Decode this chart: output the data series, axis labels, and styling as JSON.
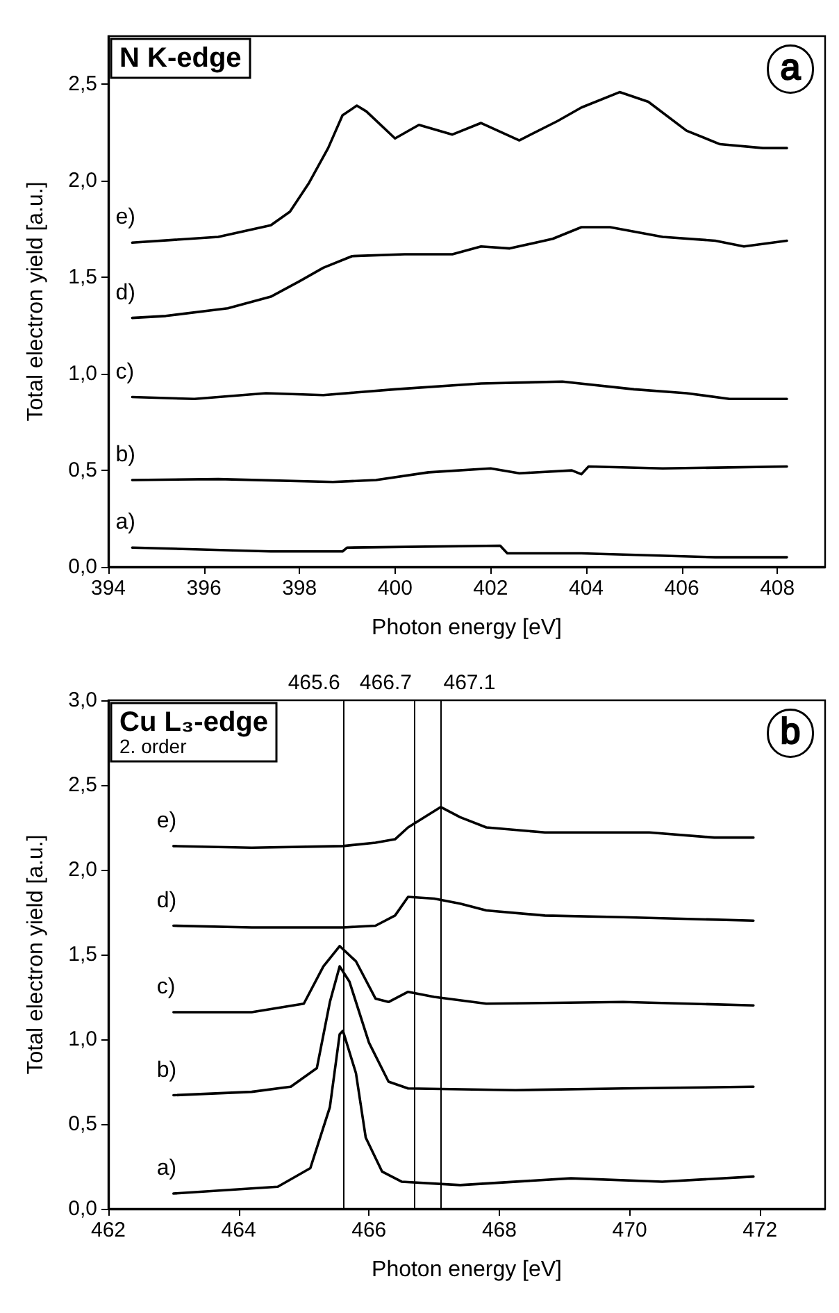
{
  "chart_data": [
    {
      "type": "line",
      "title": "N K-edge",
      "xlabel": "Photon energy [eV]",
      "ylabel": "Total electron yield [a.u.]",
      "annotations": [
        "a"
      ],
      "xlim": [
        394,
        409
      ],
      "xticks": [
        394,
        396,
        398,
        400,
        402,
        404,
        406,
        408
      ],
      "ylim": [
        0,
        2.75
      ],
      "yticks": [
        {
          "value": 0,
          "label": "0,0"
        },
        {
          "value": 0.5,
          "label": "0,5"
        },
        {
          "value": 1,
          "label": "1,0"
        },
        {
          "value": 1.5,
          "label": "1,5"
        },
        {
          "value": 2,
          "label": "2,0"
        },
        {
          "value": 2.5,
          "label": "2,5"
        }
      ],
      "marker": "none",
      "line_style": "solid",
      "series": [
        {
          "name": "e)",
          "color": "#000000",
          "x": [
            394.5,
            396.3,
            397.4,
            397.8,
            398.2,
            398.6,
            398.9,
            399.2,
            399.4,
            400.0,
            400.5,
            401.2,
            401.8,
            402.6,
            403.4,
            403.9,
            404.7,
            405.3,
            406.1,
            406.8,
            407.7,
            408.2
          ],
          "values": [
            1.68,
            1.71,
            1.77,
            1.84,
            1.99,
            2.17,
            2.34,
            2.39,
            2.36,
            2.22,
            2.29,
            2.24,
            2.3,
            2.21,
            2.31,
            2.38,
            2.46,
            2.41,
            2.26,
            2.19,
            2.17,
            2.17
          ]
        },
        {
          "name": "d)",
          "color": "#000000",
          "x": [
            394.5,
            395.2,
            396.5,
            397.4,
            398.0,
            398.5,
            399.1,
            400.2,
            401.2,
            401.8,
            402.4,
            403.3,
            403.9,
            404.5,
            405.6,
            406.7,
            407.3,
            408.2
          ],
          "values": [
            1.29,
            1.3,
            1.34,
            1.4,
            1.48,
            1.55,
            1.61,
            1.62,
            1.62,
            1.66,
            1.65,
            1.7,
            1.76,
            1.76,
            1.71,
            1.69,
            1.66,
            1.69
          ]
        },
        {
          "name": "c)",
          "color": "#000000",
          "x": [
            394.5,
            395.8,
            397.3,
            398.5,
            400.0,
            401.8,
            403.5,
            405.0,
            406.1,
            407.0,
            408.2
          ],
          "values": [
            0.88,
            0.87,
            0.9,
            0.89,
            0.92,
            0.95,
            0.96,
            0.92,
            0.9,
            0.87,
            0.87
          ]
        },
        {
          "name": "b)",
          "color": "#000000",
          "x": [
            394.5,
            396.3,
            398.7,
            399.6,
            400.7,
            402.0,
            402.6,
            403.7,
            403.9,
            404.05,
            405.6,
            408.2
          ],
          "values": [
            0.45,
            0.455,
            0.44,
            0.45,
            0.49,
            0.51,
            0.485,
            0.5,
            0.48,
            0.52,
            0.51,
            0.52
          ]
        },
        {
          "name": "a)",
          "color": "#000000",
          "x": [
            394.5,
            397.4,
            398.9,
            399.0,
            402.2,
            402.35,
            403.9,
            406.7,
            408.2
          ],
          "values": [
            0.1,
            0.08,
            0.08,
            0.1,
            0.11,
            0.07,
            0.07,
            0.05,
            0.05
          ]
        }
      ]
    },
    {
      "type": "line",
      "title": "Cu L₃-edge",
      "subtitle": "2. order",
      "xlabel": "Photon energy [eV]",
      "ylabel": "Total electron yield [a.u.]",
      "annotations": [
        "b"
      ],
      "xlim": [
        462,
        473
      ],
      "xticks": [
        462,
        464,
        466,
        468,
        470,
        472
      ],
      "ylim": [
        0,
        3
      ],
      "yticks": [
        {
          "value": 0,
          "label": "0,0"
        },
        {
          "value": 0.5,
          "label": "0,5"
        },
        {
          "value": 1,
          "label": "1,0"
        },
        {
          "value": 1.5,
          "label": "1,5"
        },
        {
          "value": 2,
          "label": "2,0"
        },
        {
          "value": 2.5,
          "label": "2,5"
        },
        {
          "value": 3,
          "label": "3,0"
        }
      ],
      "marker": "none",
      "line_style": "solid",
      "ref_lines": [
        {
          "axis": "x",
          "value": 465.6,
          "label": "465.6"
        },
        {
          "axis": "x",
          "value": 466.7,
          "label": "466.7"
        },
        {
          "axis": "x",
          "value": 467.1,
          "label": "467.1"
        }
      ],
      "series": [
        {
          "name": "e)",
          "color": "#000000",
          "x": [
            463.0,
            464.2,
            465.6,
            466.1,
            466.4,
            466.6,
            467.1,
            467.4,
            467.8,
            468.7,
            470.3,
            471.3,
            471.9
          ],
          "values": [
            2.14,
            2.13,
            2.14,
            2.16,
            2.18,
            2.25,
            2.37,
            2.31,
            2.25,
            2.22,
            2.22,
            2.19,
            2.19
          ]
        },
        {
          "name": "d)",
          "color": "#000000",
          "x": [
            463.0,
            464.2,
            465.6,
            466.1,
            466.4,
            466.6,
            467.0,
            467.4,
            467.8,
            468.7,
            469.9,
            471.9
          ],
          "values": [
            1.67,
            1.66,
            1.66,
            1.67,
            1.73,
            1.84,
            1.83,
            1.8,
            1.76,
            1.73,
            1.72,
            1.7
          ]
        },
        {
          "name": "c)",
          "color": "#000000",
          "x": [
            463.0,
            464.2,
            465.0,
            465.3,
            465.55,
            465.8,
            466.1,
            466.3,
            466.6,
            467.0,
            467.8,
            469.9,
            471.9
          ],
          "values": [
            1.16,
            1.16,
            1.21,
            1.43,
            1.55,
            1.46,
            1.24,
            1.22,
            1.28,
            1.25,
            1.21,
            1.22,
            1.2
          ]
        },
        {
          "name": "b)",
          "color": "#000000",
          "x": [
            463.0,
            464.2,
            464.8,
            465.2,
            465.4,
            465.55,
            465.7,
            466.0,
            466.3,
            466.6,
            468.25,
            469.9,
            471.9
          ],
          "values": [
            0.67,
            0.69,
            0.72,
            0.83,
            1.22,
            1.43,
            1.34,
            0.98,
            0.75,
            0.71,
            0.7,
            0.71,
            0.72
          ]
        },
        {
          "name": "a)",
          "color": "#000000",
          "x": [
            463.0,
            464.6,
            465.1,
            465.4,
            465.55,
            465.6,
            465.8,
            465.95,
            466.2,
            466.5,
            467.4,
            469.1,
            470.5,
            471.9
          ],
          "values": [
            0.09,
            0.13,
            0.24,
            0.6,
            1.03,
            1.05,
            0.8,
            0.42,
            0.22,
            0.16,
            0.14,
            0.18,
            0.16,
            0.19
          ]
        }
      ]
    }
  ]
}
